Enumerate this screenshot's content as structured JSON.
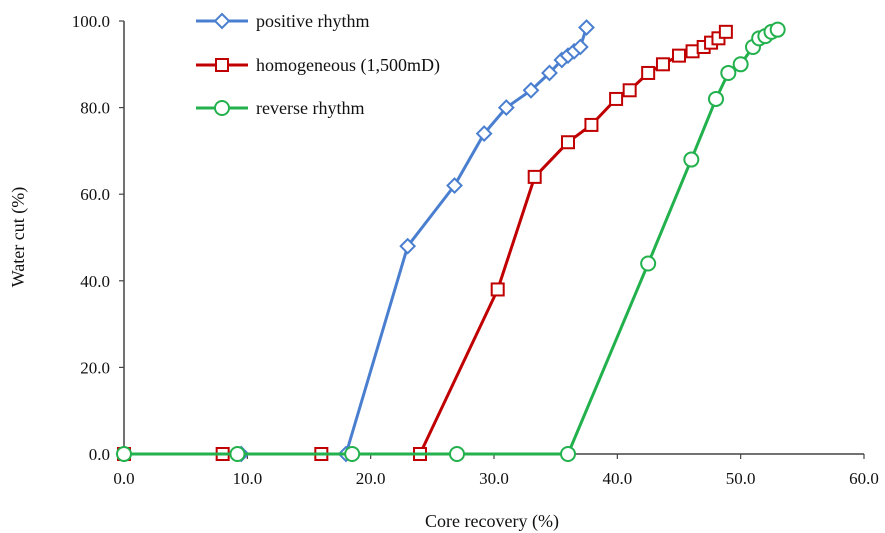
{
  "chart_data": {
    "type": "line",
    "title": "",
    "xlabel": "Core recovery (%)",
    "ylabel": "Water cut (%)",
    "xlim": [
      0,
      60
    ],
    "ylim": [
      0,
      100
    ],
    "xticks": [
      "0.0",
      "10.0",
      "20.0",
      "30.0",
      "40.0",
      "50.0",
      "60.0"
    ],
    "yticks": [
      "0.0",
      "20.0",
      "40.0",
      "60.0",
      "80.0",
      "100.0"
    ],
    "grid": false,
    "legend_position": "top-left",
    "series": [
      {
        "name": "positive rhythm",
        "color": "#4a7fd0",
        "marker": "diamond",
        "x": [
          0.0,
          9.5,
          18.0,
          23.0,
          26.8,
          29.2,
          31.0,
          33.0,
          34.5,
          35.5,
          36.0,
          36.5,
          37.0,
          37.5
        ],
        "y": [
          0.0,
          0.0,
          0.0,
          48.0,
          62.0,
          74.0,
          80.0,
          84.0,
          88.0,
          91.0,
          92.0,
          93.0,
          94.0,
          98.5
        ]
      },
      {
        "name": "homogeneous (1,500mD)",
        "color": "#c00000",
        "marker": "square",
        "x": [
          0.0,
          8.0,
          16.0,
          24.0,
          30.3,
          33.3,
          36.0,
          37.9,
          39.9,
          41.0,
          42.5,
          43.7,
          45.0,
          46.1,
          47.0,
          47.6,
          48.2,
          48.8
        ],
        "y": [
          0.0,
          0.0,
          0.0,
          0.0,
          38.0,
          64.0,
          72.0,
          76.0,
          82.0,
          84.0,
          88.0,
          90.0,
          92.0,
          93.0,
          94.0,
          95.0,
          96.0,
          97.5
        ]
      },
      {
        "name": "reverse rhythm",
        "color": "#22b14c",
        "marker": "circle",
        "x": [
          0.0,
          9.2,
          18.5,
          27.0,
          36.0,
          42.5,
          46.0,
          48.0,
          49.0,
          50.0,
          51.0,
          51.5,
          52.0,
          52.5,
          53.0
        ],
        "y": [
          0.0,
          0.0,
          0.0,
          0.0,
          0.0,
          44.0,
          68.0,
          82.0,
          88.0,
          90.0,
          94.0,
          96.0,
          96.5,
          97.5,
          98.0
        ]
      }
    ]
  }
}
